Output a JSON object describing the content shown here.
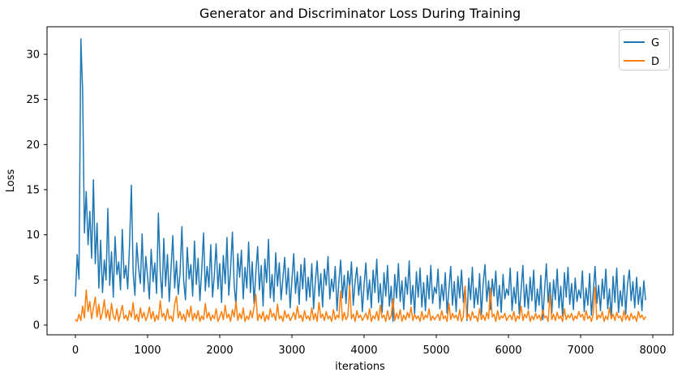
{
  "chart_data": {
    "type": "line",
    "title": "Generator and Discriminator Loss During Training",
    "xlabel": "iterations",
    "ylabel": "Loss",
    "xlim": [
      -393,
      8281
    ],
    "ylim": [
      -1.08,
      33.05
    ],
    "xticks": [
      0,
      1000,
      2000,
      3000,
      4000,
      5000,
      6000,
      7000,
      8000
    ],
    "yticks": [
      0,
      5,
      10,
      15,
      20,
      25,
      30
    ],
    "grid": false,
    "background": "#ffffff",
    "spine_color": "#000000",
    "text_color": "#000000",
    "legend": {
      "position": "upper right",
      "border_color": "#cccccc"
    },
    "x_start": 0,
    "x_step": 25,
    "series": [
      {
        "name": "G",
        "color": "#1f77b4",
        "values": [
          3.2,
          7.8,
          5.1,
          31.7,
          25.9,
          10.2,
          14.8,
          8.9,
          12.6,
          7.4,
          16.1,
          6.8,
          11.3,
          4.1,
          9.4,
          3.6,
          7.2,
          5.0,
          12.9,
          4.4,
          8.1,
          3.1,
          9.8,
          5.6,
          7.0,
          3.9,
          10.6,
          5.2,
          6.6,
          4.0,
          8.8,
          15.5,
          5.8,
          3.3,
          9.1,
          6.3,
          4.6,
          10.1,
          3.7,
          7.6,
          5.4,
          2.9,
          8.4,
          4.8,
          6.9,
          3.5,
          12.4,
          5.9,
          3.0,
          9.6,
          4.3,
          7.8,
          2.6,
          6.2,
          9.9,
          4.1,
          7.1,
          3.4,
          5.7,
          10.9,
          4.9,
          2.8,
          8.6,
          5.1,
          6.7,
          3.2,
          9.3,
          4.5,
          7.4,
          2.7,
          6.0,
          10.2,
          3.8,
          6.5,
          4.2,
          8.9,
          3.1,
          5.5,
          9.0,
          4.0,
          6.8,
          2.5,
          7.7,
          4.6,
          9.7,
          3.3,
          6.1,
          10.3,
          4.4,
          2.2,
          7.9,
          5.3,
          8.3,
          2.9,
          6.4,
          4.1,
          9.2,
          3.6,
          7.0,
          2.4,
          5.8,
          8.7,
          3.9,
          6.6,
          2.1,
          7.3,
          4.7,
          9.5,
          3.0,
          5.6,
          2.6,
          8.0,
          4.3,
          6.9,
          2.8,
          5.2,
          7.5,
          3.4,
          6.3,
          1.9,
          5.0,
          7.9,
          3.5,
          5.9,
          2.3,
          6.7,
          4.0,
          7.4,
          2.7,
          5.3,
          3.1,
          6.8,
          1.8,
          4.9,
          7.1,
          3.2,
          5.7,
          2.0,
          6.2,
          4.4,
          7.6,
          2.9,
          5.1,
          3.7,
          6.5,
          1.6,
          4.7,
          7.2,
          3.0,
          5.5,
          2.4,
          6.0,
          4.1,
          7.0,
          2.2,
          4.8,
          6.4,
          3.3,
          5.4,
          1.5,
          4.5,
          6.9,
          2.8,
          5.0,
          1.9,
          6.1,
          3.6,
          7.3,
          2.5,
          4.6,
          1.4,
          5.8,
          3.2,
          6.6,
          2.1,
          4.3,
          0.4,
          5.6,
          3.0,
          6.8,
          2.6,
          4.9,
          1.7,
          5.3,
          3.4,
          7.1,
          2.3,
          4.4,
          1.2,
          5.9,
          3.1,
          6.3,
          2.0,
          4.7,
          1.6,
          5.5,
          2.9,
          6.6,
          2.4,
          4.2,
          3.5,
          6.2,
          1.8,
          4.5,
          2.7,
          5.8,
          1.3,
          4.0,
          6.5,
          2.2,
          4.8,
          1.5,
          5.4,
          3.0,
          6.1,
          2.5,
          4.3,
          0.5,
          5.2,
          2.8,
          6.4,
          1.9,
          4.1,
          2.3,
          5.7,
          1.1,
          4.6,
          6.7,
          2.6,
          4.9,
          1.7,
          5.1,
          3.2,
          6.0,
          2.1,
          4.4,
          1.4,
          5.6,
          2.9,
          4.0,
          3.3,
          6.3,
          1.6,
          4.2,
          2.4,
          5.9,
          1.2,
          3.9,
          6.6,
          2.0,
          4.5,
          1.8,
          5.3,
          2.7,
          6.1,
          1.5,
          4.0,
          2.2,
          5.5,
          0.6,
          3.8,
          6.8,
          2.5,
          4.7,
          1.3,
          5.0,
          2.8,
          6.2,
          1.9,
          4.3,
          1.0,
          5.8,
          3.1,
          6.4,
          2.3,
          4.6,
          1.7,
          5.2,
          2.6,
          3.9,
          3.0,
          6.0,
          1.5,
          4.1,
          2.2,
          5.7,
          1.1,
          3.7,
          6.5,
          2.4,
          4.4,
          1.6,
          5.1,
          2.9,
          6.2,
          1.8,
          4.0,
          0.7,
          5.4,
          2.5,
          6.3,
          1.4,
          3.8,
          2.1,
          5.5,
          1.2,
          4.5,
          6.1,
          2.7,
          4.8,
          1.9,
          5.3,
          2.3,
          4.2,
          1.6,
          4.9,
          2.8
        ]
      },
      {
        "name": "D",
        "color": "#ff7f0e",
        "values": [
          0.6,
          0.4,
          1.2,
          0.5,
          2.1,
          0.8,
          3.9,
          1.5,
          2.6,
          0.7,
          1.9,
          3.1,
          0.9,
          2.3,
          0.6,
          1.4,
          2.8,
          0.8,
          1.7,
          0.5,
          2.4,
          1.0,
          0.6,
          1.8,
          0.4,
          1.3,
          2.2,
          0.7,
          1.1,
          0.5,
          1.6,
          0.9,
          2.5,
          0.6,
          1.2,
          0.4,
          1.9,
          0.8,
          1.4,
          0.5,
          1.0,
          2.0,
          0.7,
          1.5,
          0.4,
          1.1,
          0.6,
          2.7,
          0.9,
          1.3,
          0.5,
          1.8,
          0.7,
          1.0,
          0.4,
          2.3,
          3.2,
          0.8,
          1.5,
          0.6,
          1.2,
          0.4,
          1.7,
          0.9,
          2.1,
          0.5,
          1.3,
          0.7,
          1.6,
          0.4,
          1.0,
          0.6,
          2.4,
          0.8,
          1.4,
          0.5,
          1.1,
          0.7,
          1.8,
          0.4,
          0.9,
          1.5,
          0.6,
          2.2,
          0.8,
          1.2,
          0.4,
          1.7,
          0.9,
          2.6,
          0.5,
          1.3,
          0.7,
          1.9,
          0.4,
          1.0,
          0.6,
          1.6,
          0.8,
          2.0,
          3.4,
          0.5,
          1.2,
          0.7,
          1.5,
          0.4,
          1.1,
          0.6,
          1.8,
          0.9,
          1.3,
          0.5,
          2.3,
          0.7,
          1.0,
          0.4,
          1.6,
          0.8,
          1.2,
          0.5,
          0.9,
          1.4,
          0.6,
          2.1,
          0.8,
          1.1,
          0.4,
          1.6,
          0.7,
          1.0,
          0.5,
          1.9,
          0.6,
          1.3,
          0.4,
          2.5,
          0.8,
          1.2,
          0.5,
          1.5,
          0.7,
          1.0,
          0.4,
          1.7,
          0.6,
          1.1,
          0.8,
          3.8,
          0.5,
          1.4,
          0.6,
          1.0,
          4.4,
          0.7,
          1.2,
          0.4,
          1.6,
          0.8,
          1.1,
          0.5,
          0.9,
          1.3,
          0.6,
          1.8,
          0.4,
          1.0,
          0.7,
          1.5,
          0.5,
          2.2,
          0.8,
          1.1,
          0.4,
          1.6,
          0.6,
          1.0,
          2.9,
          0.5,
          1.3,
          0.7,
          1.7,
          0.4,
          1.1,
          0.6,
          1.4,
          0.8,
          2.0,
          0.5,
          1.2,
          0.7,
          1.0,
          0.4,
          1.5,
          0.6,
          1.1,
          0.8,
          1.8,
          0.5,
          1.0,
          0.6,
          0.9,
          1.2,
          0.5,
          1.6,
          0.7,
          1.0,
          0.4,
          2.4,
          0.6,
          1.3,
          0.8,
          1.1,
          0.5,
          1.7,
          0.4,
          1.0,
          4.3,
          0.7,
          1.2,
          0.5,
          1.5,
          0.8,
          1.0,
          0.4,
          1.8,
          0.6,
          1.1,
          0.5,
          1.4,
          0.7,
          4.1,
          0.9,
          1.2,
          0.4,
          1.6,
          0.6,
          1.0,
          0.8,
          1.3,
          0.5,
          0.9,
          1.1,
          0.6,
          1.5,
          0.4,
          1.0,
          0.7,
          2.1,
          0.5,
          1.2,
          0.8,
          1.6,
          0.4,
          1.0,
          0.6,
          1.3,
          0.7,
          1.1,
          0.5,
          1.7,
          0.8,
          1.0,
          0.4,
          3.4,
          0.6,
          1.2,
          0.5,
          1.4,
          0.7,
          1.0,
          0.4,
          1.8,
          0.6,
          1.1,
          0.8,
          1.3,
          0.5,
          1.0,
          0.7,
          1.5,
          0.9,
          1.2,
          0.5,
          1.6,
          0.7,
          1.0,
          0.4,
          1.3,
          4.2,
          0.6,
          1.1,
          0.8,
          1.5,
          0.4,
          1.0,
          0.6,
          1.9,
          0.7,
          1.2,
          0.5,
          1.4,
          0.8,
          1.0,
          0.4,
          1.6,
          0.6,
          1.1,
          0.5,
          1.3,
          0.7,
          1.0,
          0.4,
          1.5,
          0.8,
          1.1,
          0.6,
          0.9
        ]
      }
    ]
  }
}
